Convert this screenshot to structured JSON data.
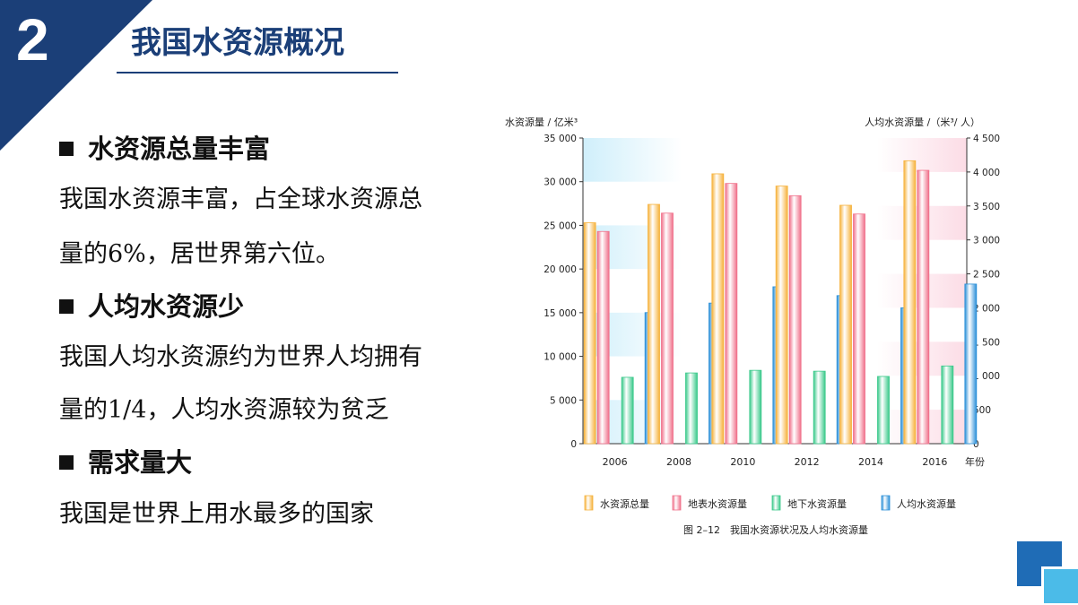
{
  "section_number": "2",
  "title": "我国水资源概况",
  "points": [
    {
      "heading": "水资源总量丰富",
      "lines": [
        "我国水资源丰富，占全球水资源总",
        "量的6%，居世界第六位。"
      ]
    },
    {
      "heading": "人均水资源少",
      "lines": [
        "我国人均水资源约为世界人均拥有",
        "量的1/4，人均水资源较为贫乏"
      ]
    },
    {
      "heading": "需求量大",
      "lines": [
        "我国是世界上用水最多的国家"
      ]
    }
  ],
  "colors": {
    "navy": "#1b3f78",
    "accent_blue": "#1f6cb6",
    "light_blue": "#4bbbe8"
  },
  "chart_data": {
    "type": "bar",
    "categories": [
      "2006",
      "2008",
      "2010",
      "2012",
      "2014",
      "2016"
    ],
    "xlabel_unit": "年份",
    "ylabel_left": "水资源量 / 亿米³",
    "ylabel_right": "人均水资源量 /（米³/ 人）",
    "ylim_left": [
      0,
      35000
    ],
    "ylim_right": [
      0,
      4500
    ],
    "yticks_left": [
      "0",
      "5 000",
      "10 000",
      "15 000",
      "20 000",
      "25 000",
      "30 000",
      "35 000"
    ],
    "yticks_right": [
      "0",
      "500",
      "1 000",
      "1 500",
      "2 000",
      "2 500",
      "3 000",
      "3 500",
      "4 000",
      "4 500"
    ],
    "series": [
      {
        "name": "水资源总量",
        "axis": "left",
        "color": "#f6b23c",
        "values": [
          25300,
          27400,
          30900,
          29500,
          27300,
          32400
        ]
      },
      {
        "name": "地表水资源量",
        "axis": "left",
        "color": "#f0708a",
        "values": [
          24300,
          26400,
          29800,
          28400,
          26300,
          31300
        ]
      },
      {
        "name": "地下水资源量",
        "axis": "left",
        "color": "#39c98a",
        "values": [
          7600,
          8100,
          8400,
          8300,
          7700,
          8900
        ]
      },
      {
        "name": "人均水资源量",
        "axis": "right",
        "color": "#2a8fd8",
        "values": [
          1930,
          2070,
          2310,
          2180,
          2000,
          2350
        ]
      }
    ],
    "caption": "图 2–12　我国水资源状况及人均水资源量"
  }
}
